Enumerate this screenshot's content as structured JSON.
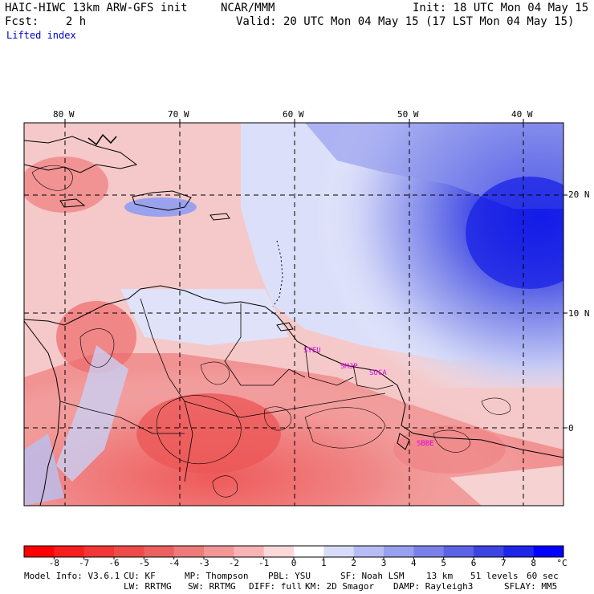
{
  "header": {
    "title": "HAIC-HIWC 13km ARW-GFS init",
    "org": "NCAR/MMM",
    "init": "Init: 18 UTC Mon 04 May 15",
    "fcst": "Fcst:    2 h",
    "valid": "Valid: 20 UTC Mon 04 May 15 (17 LST Mon 04 May 15)",
    "field": "Lifted index"
  },
  "axes": {
    "lon_labels": [
      "80 W",
      "70 W",
      "60 W",
      "50 W",
      "40 W"
    ],
    "lat_labels": [
      "20 N",
      "10 N",
      "0"
    ]
  },
  "stations": [
    "SYEU",
    "SMJP",
    "SOCA",
    "SBBE"
  ],
  "colorbar": {
    "labels": [
      "-8",
      "-7",
      "-6",
      "-5",
      "-4",
      "-3",
      "-2",
      "-1",
      "0",
      "1",
      "2",
      "3",
      "4",
      "5",
      "6",
      "7",
      "8"
    ],
    "unit": "°C",
    "colors": [
      "#ff0000",
      "#f71e1e",
      "#f23535",
      "#ee4a4a",
      "#ec6060",
      "#ef7a7a",
      "#f29696",
      "#f7b4b4",
      "#fcd8d8",
      "#ffffff",
      "#d8dcfa",
      "#b7bdf4",
      "#98a0ef",
      "#7a82ea",
      "#5b63e6",
      "#3c44e2",
      "#1e26e8",
      "#0000ff"
    ]
  },
  "footer": {
    "line1_a": "Model Info: V3.6.1",
    "line1_b": "CU: KF",
    "line1_c": "MP: Thompson",
    "line1_d": "PBL: YSU",
    "line1_e": "SF: Noah LSM",
    "line1_f": "13 km",
    "line1_g": "51 levels",
    "line1_h": "60 sec",
    "line2_a": "LW: RRTMG",
    "line2_b": "SW: RRTMG",
    "line2_c": "DIFF: full",
    "line2_d": "KM: 2D Smagor",
    "line2_e": "DAMP: Rayleigh3",
    "line2_f": "SFLAY: MM5"
  }
}
